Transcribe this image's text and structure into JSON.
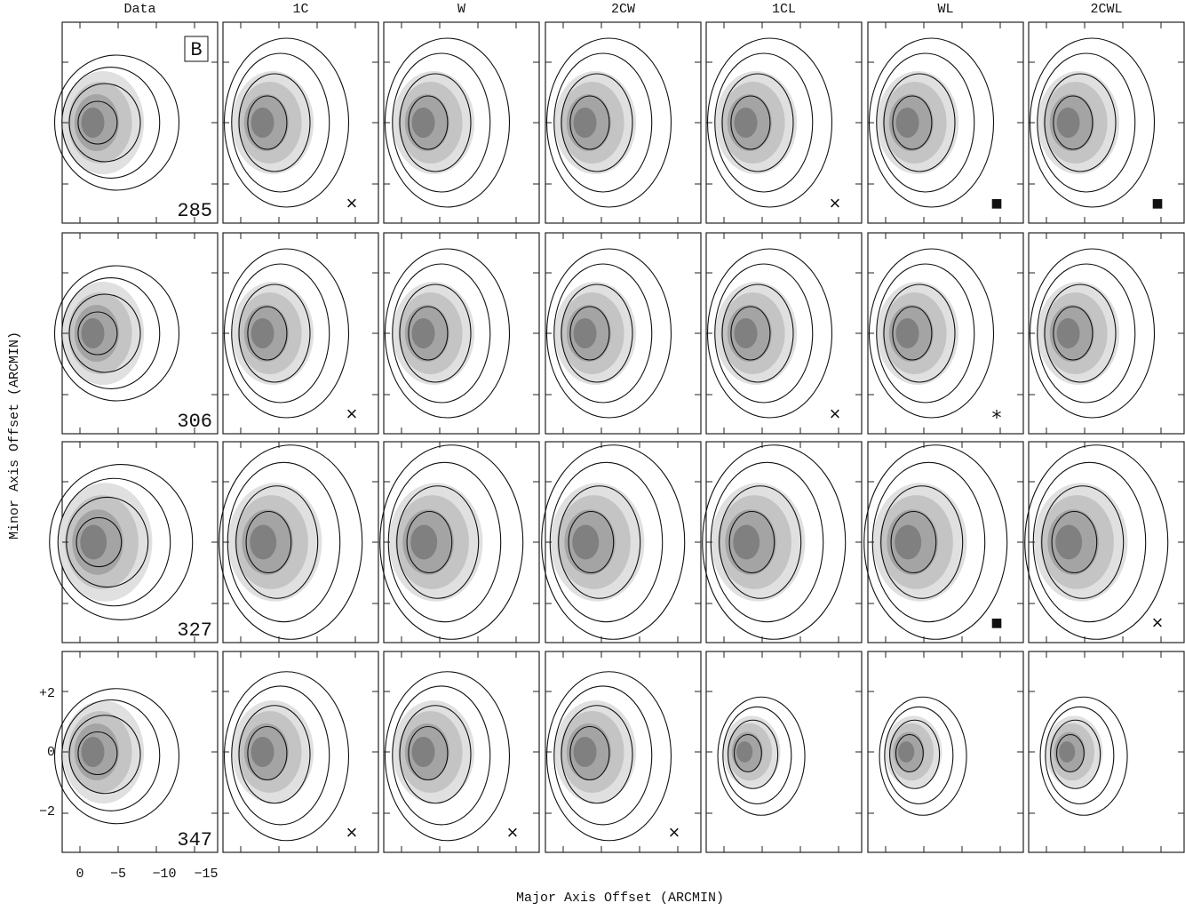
{
  "panel_letter": "B",
  "columns": [
    "Data",
    "1C",
    "W",
    "2CW",
    "1CL",
    "WL",
    "2CWL"
  ],
  "rows": [
    {
      "label": "285",
      "markers": [
        {
          "col": 1,
          "symbol": "×"
        },
        {
          "col": 4,
          "symbol": "×"
        },
        {
          "col": 5,
          "symbol": "■"
        },
        {
          "col": 6,
          "symbol": "■"
        }
      ]
    },
    {
      "label": "306",
      "markers": [
        {
          "col": 1,
          "symbol": "×"
        },
        {
          "col": 4,
          "symbol": "×"
        },
        {
          "col": 5,
          "symbol": "∗"
        }
      ]
    },
    {
      "label": "327",
      "markers": [
        {
          "col": 5,
          "symbol": "■"
        },
        {
          "col": 6,
          "symbol": "×"
        }
      ]
    },
    {
      "label": "347",
      "markers": [
        {
          "col": 1,
          "symbol": "×"
        },
        {
          "col": 2,
          "symbol": "×"
        },
        {
          "col": 3,
          "symbol": "×"
        }
      ]
    }
  ],
  "x_axis": {
    "title": "Major Axis Offset (ARCMIN)",
    "ticks": [
      "0",
      "−5",
      "−10",
      "−15"
    ]
  },
  "y_axis": {
    "title": "Minor Axis Offset (ARCMIN)",
    "ticks": [
      "+2",
      "0",
      "−2"
    ]
  }
}
